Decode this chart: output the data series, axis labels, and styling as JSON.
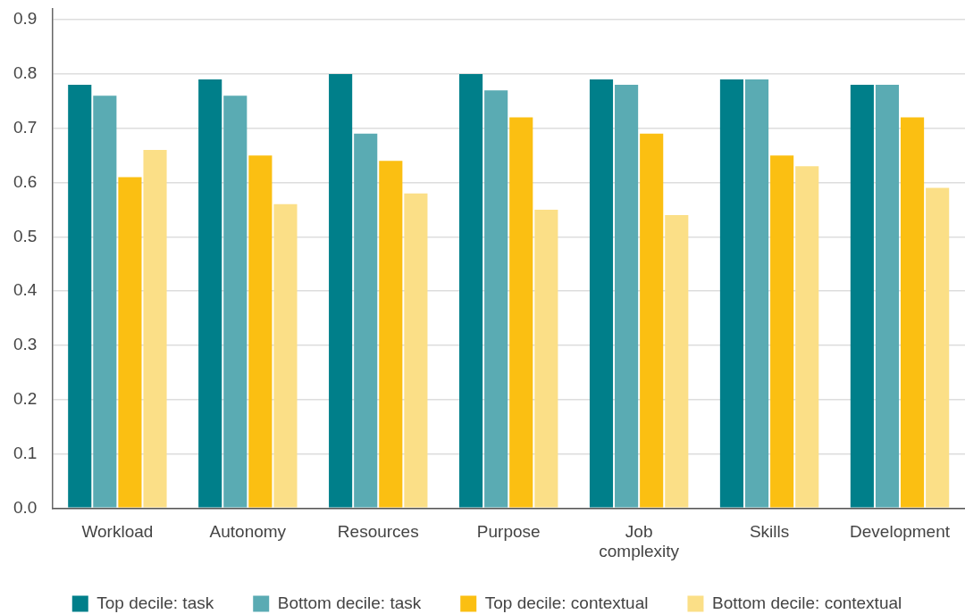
{
  "chart_data": {
    "type": "bar",
    "categories": [
      "Workload",
      "Autonomy",
      "Resources",
      "Purpose",
      "Job complexity",
      "Skills",
      "Development"
    ],
    "series": [
      {
        "name": "Top decile: task",
        "color": "#007f8a",
        "values": [
          0.78,
          0.79,
          0.8,
          0.8,
          0.79,
          0.79,
          0.78
        ]
      },
      {
        "name": "Bottom decile: task",
        "color": "#5aabb3",
        "values": [
          0.76,
          0.76,
          0.69,
          0.77,
          0.78,
          0.79,
          0.78
        ]
      },
      {
        "name": "Top decile: contextual",
        "color": "#fbbf12",
        "values": [
          0.61,
          0.65,
          0.64,
          0.72,
          0.69,
          0.65,
          0.72
        ]
      },
      {
        "name": "Bottom decile: contextual",
        "color": "#fbdf87",
        "values": [
          0.66,
          0.56,
          0.58,
          0.55,
          0.54,
          0.63,
          0.59
        ]
      }
    ],
    "ylim": [
      0,
      0.92
    ],
    "yticks": [
      {
        "value": 0,
        "label": "0.0"
      },
      0.1,
      0.2,
      0.3,
      0.4,
      0.5,
      0.6,
      0.7,
      0.8,
      0.9
    ],
    "grid": "y",
    "legend": "bottom"
  }
}
